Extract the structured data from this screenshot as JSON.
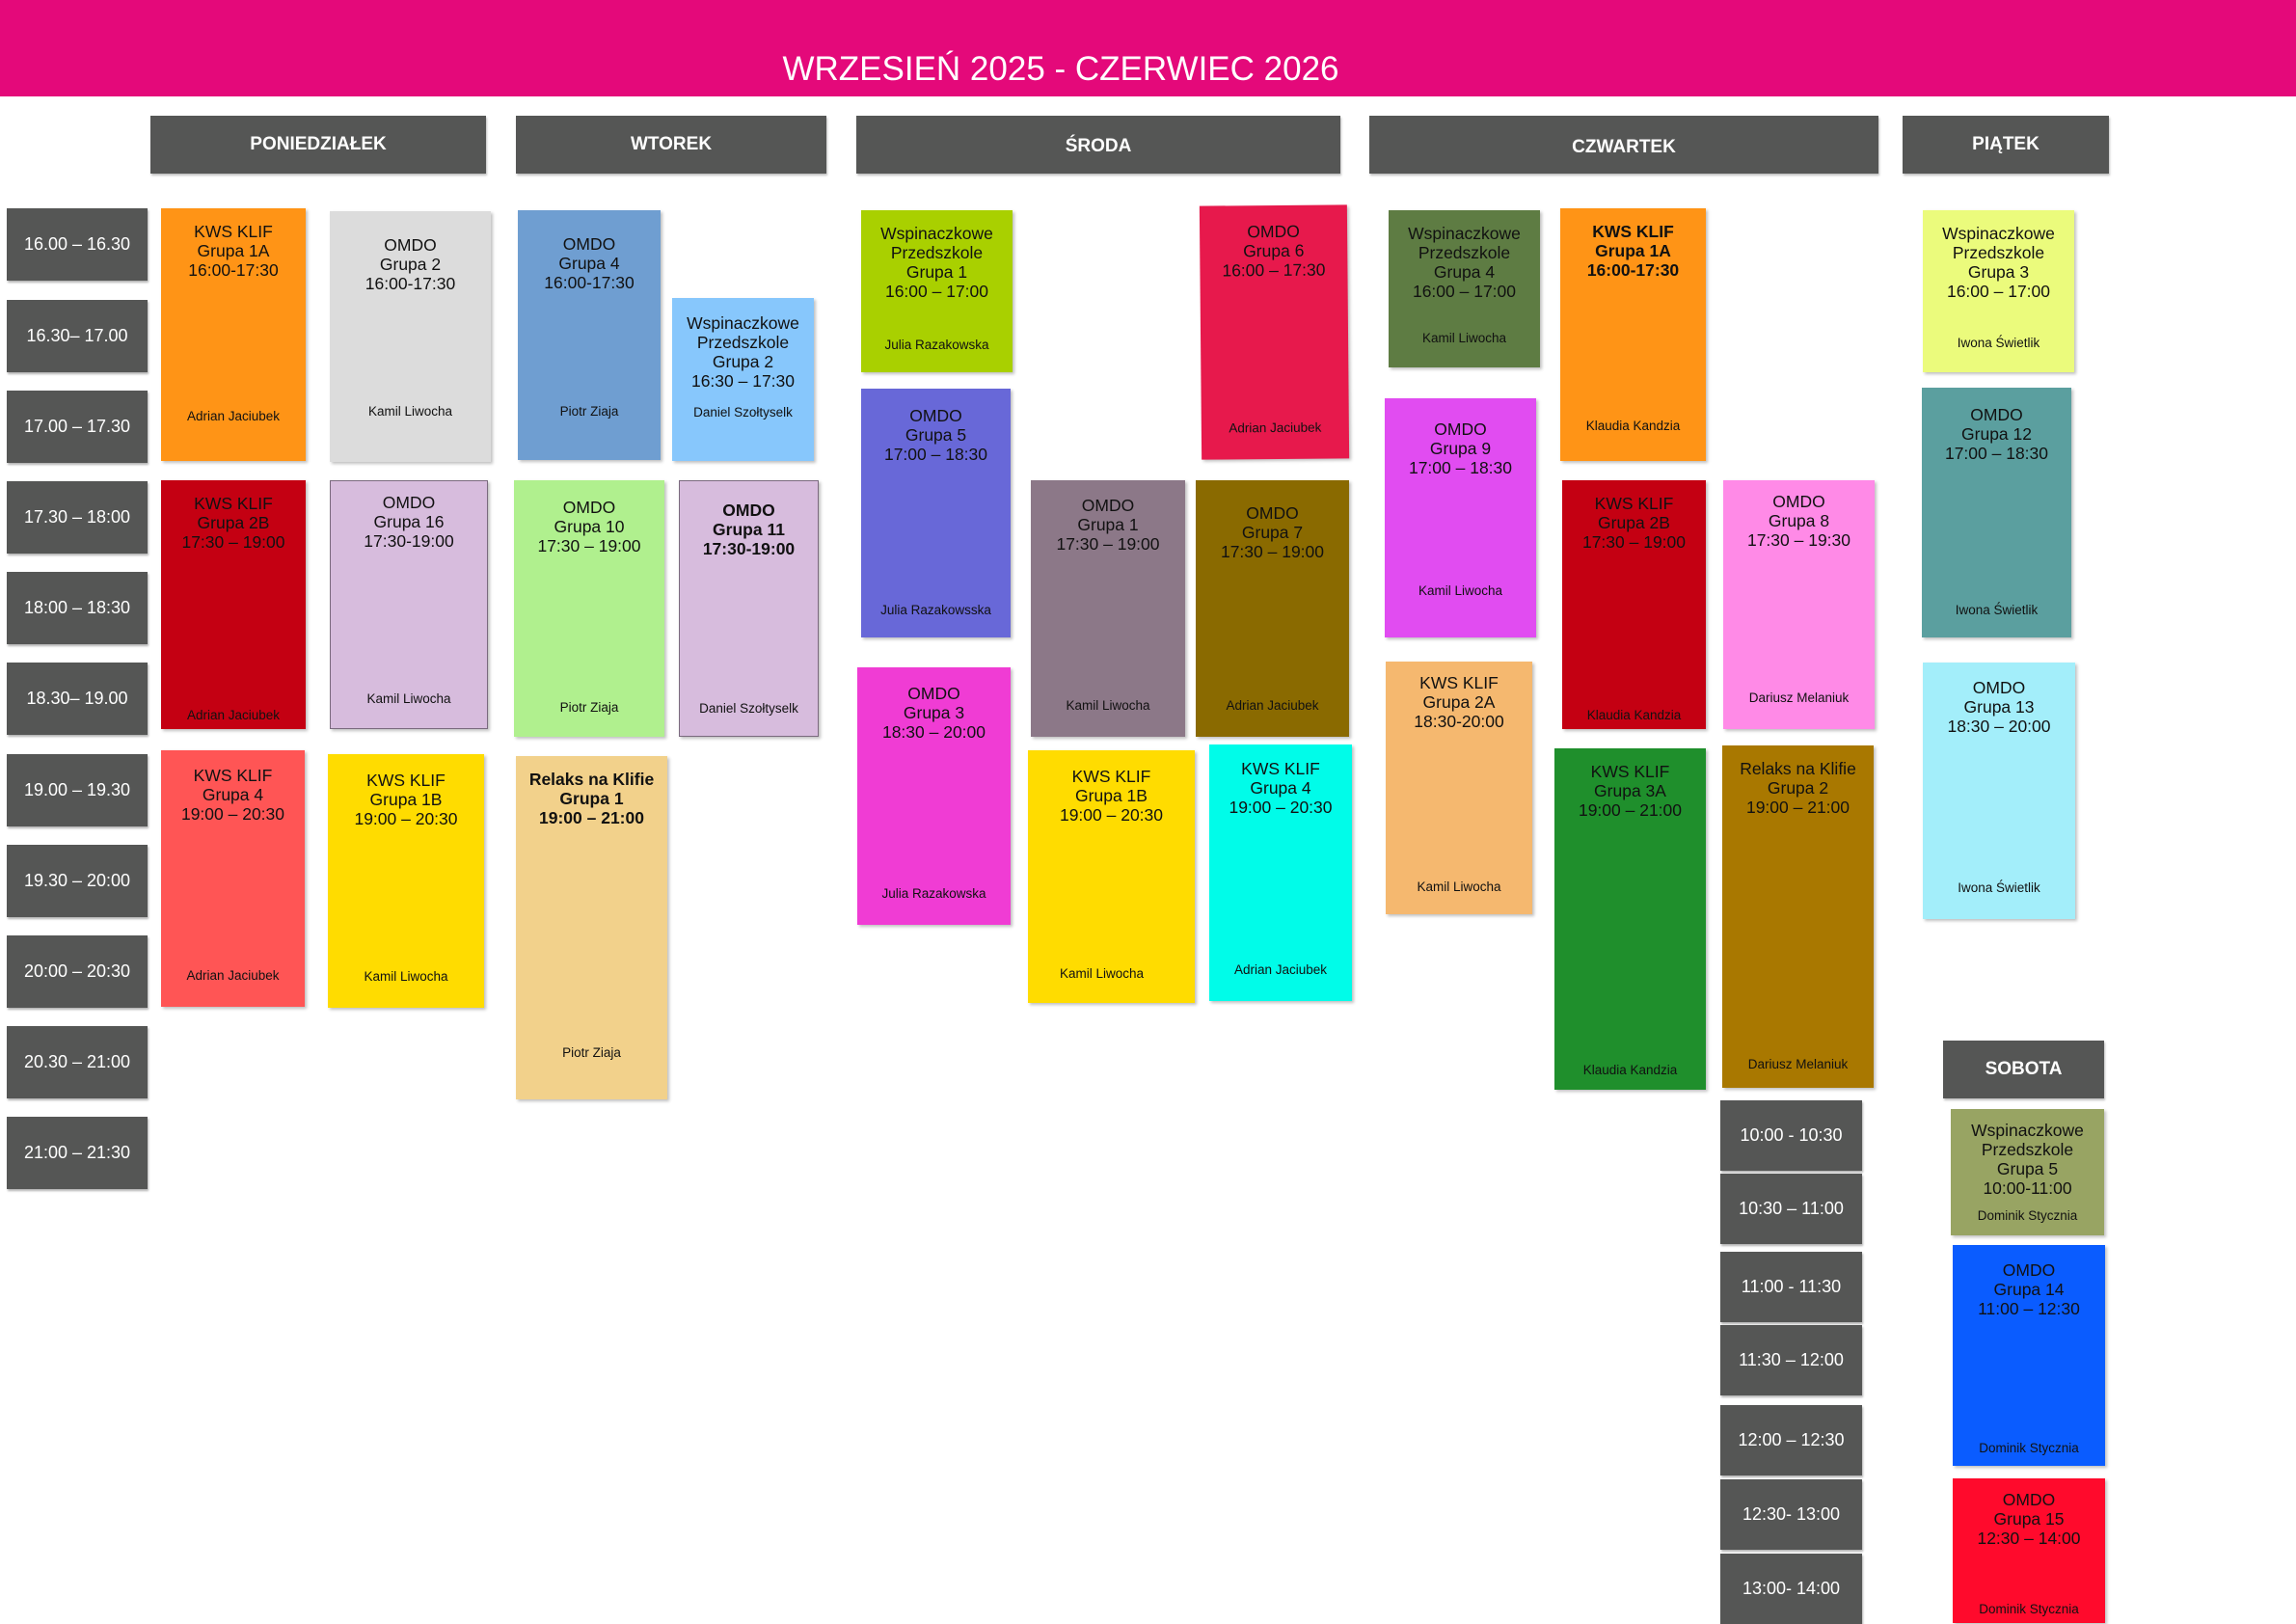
{
  "header": {
    "title": "WRZESIEŃ 2025 - CZERWIEC 2026"
  },
  "days": {
    "mon": "PONIEDZIAŁEK",
    "tue": "WTOREK",
    "wed": "ŚRODA",
    "thu": "CZWARTEK",
    "fri": "PIĄTEK",
    "sat": "SOBOTA"
  },
  "weekday_times": [
    "16.00 – 16.30",
    "16.30– 17.00",
    "17.00 – 17.30",
    "17.30 – 18:00",
    "18:00 – 18:30",
    "18.30– 19.00",
    "19.00 – 19.30",
    "19.30 – 20:00",
    "20:00 – 20:30",
    "20.30 – 21:00",
    "21:00 – 21:30"
  ],
  "saturday_times": [
    "10:00 - 10:30",
    "10:30 – 11:00",
    "11:00 - 11:30",
    "11:30 – 12:00",
    "12:00 – 12:30",
    "12:30- 13:00",
    "13:00- 14:00"
  ],
  "events": {
    "mon_1": {
      "title": "KWS KLIF\nGrupa 1A\n16:00-17:30",
      "instructor": "Adrian Jaciubek",
      "color": "#ff9416"
    },
    "mon_2": {
      "title": "OMDO\nGrupa 2\n16:00-17:30",
      "instructor": "Kamil Liwocha",
      "color": "#dcdcdc"
    },
    "mon_3": {
      "title": "KWS KLIF\nGrupa 2B\n17:30 – 19:00",
      "instructor": "Adrian Jaciubek",
      "color": "#c40012"
    },
    "mon_4": {
      "title": "OMDO\nGrupa 16\n17:30-19:00",
      "instructor": "Kamil Liwocha",
      "color": "#d7bcdd"
    },
    "mon_5": {
      "title": "KWS KLIF\nGrupa 4\n19:00 – 20:30",
      "instructor": "Adrian Jaciubek",
      "color": "#ff5555"
    },
    "mon_6": {
      "title": "KWS KLIF\nGrupa 1B\n19:00 – 20:30",
      "instructor": "Kamil Liwocha",
      "color": "#ffdc00"
    },
    "tue_1": {
      "title": "OMDO\nGrupa 4\n16:00-17:30",
      "instructor": "Piotr Ziaja",
      "color": "#6f9ed1"
    },
    "tue_2": {
      "title": "Wspinaczkowe\nPrzedszkole\nGrupa 2\n16:30 – 17:30",
      "instructor": "Daniel Szołtyselk",
      "color": "#87c7fc"
    },
    "tue_3": {
      "title": "OMDO\nGrupa 10\n17:30 – 19:00",
      "instructor": "Piotr Ziaja",
      "color": "#b0f08e"
    },
    "tue_4": {
      "title": "OMDO\nGrupa 11\n17:30-19:00",
      "instructor": "Daniel Szołtyselk",
      "color": "#d7bcdd"
    },
    "tue_5": {
      "title": "Relaks na Klifie\nGrupa 1\n19:00 – 21:00",
      "instructor": "Piotr Ziaja",
      "color": "#f2d18b"
    },
    "wed_1": {
      "title": "Wspinaczkowe\nPrzedszkole\nGrupa 1\n16:00 – 17:00",
      "instructor": "Julia Razakowska",
      "color": "#a9d000"
    },
    "wed_2": {
      "title": "OMDO\nGrupa 6\n16:00 – 17:30",
      "instructor": "Adrian Jaciubek",
      "color": "#e7194c"
    },
    "wed_3": {
      "title": "OMDO\nGrupa 5\n17:00 – 18:30",
      "instructor": "Julia Razakowsska",
      "color": "#6868d8"
    },
    "wed_4": {
      "title": "OMDO\nGrupa 1\n17:30 – 19:00",
      "instructor": "Kamil Liwocha",
      "color": "#8c7888"
    },
    "wed_5": {
      "title": "OMDO\nGrupa 7\n17:30 – 19:00",
      "instructor": "Adrian Jaciubek",
      "color": "#8a6a00"
    },
    "wed_6": {
      "title": "OMDO\nGrupa 3\n18:30 – 20:00",
      "instructor": "Julia Razakowska",
      "color": "#f03cd4"
    },
    "wed_7": {
      "title": "KWS KLIF\nGrupa 1B\n19:00 – 20:30",
      "instructor": "Kamil Liwocha",
      "color": "#ffdc00"
    },
    "wed_8": {
      "title": "KWS KLIF\nGrupa 4\n19:00 – 20:30",
      "instructor": "Adrian Jaciubek",
      "color": "#00fce9"
    },
    "thu_1": {
      "title": "Wspinaczkowe\nPrzedszkole\nGrupa 4\n16:00 – 17:00",
      "instructor": "Kamil Liwocha",
      "color": "#5e7c43"
    },
    "thu_2": {
      "title": "KWS KLIF\nGrupa 1A\n16:00-17:30",
      "instructor": "Klaudia Kandzia",
      "color": "#ff9416"
    },
    "thu_3": {
      "title": "OMDO\nGrupa 9\n17:00 – 18:30",
      "instructor": "Kamil Liwocha",
      "color": "#e14cf1"
    },
    "thu_4": {
      "title": "KWS KLIF\nGrupa 2B\n17:30 – 19:00",
      "instructor": "Klaudia Kandzia",
      "color": "#c40012"
    },
    "thu_5": {
      "title": "OMDO\nGrupa 8\n17:30 – 19:30",
      "instructor": "Dariusz Melaniuk",
      "color": "#ff8ae7"
    },
    "thu_6": {
      "title": "KWS KLIF\nGrupa 2A\n18:30-20:00",
      "instructor": "Kamil Liwocha",
      "color": "#f5b86f"
    },
    "thu_7": {
      "title": "KWS KLIF\nGrupa 3A\n19:00 – 21:00",
      "instructor": "Klaudia Kandzia",
      "color": "#1f8f2c"
    },
    "thu_8": {
      "title": "Relaks na Klifie\nGrupa 2\n19:00 – 21:00",
      "instructor": "Dariusz Melaniuk",
      "color": "#a97800"
    },
    "fri_1": {
      "title": "Wspinaczkowe\nPrzedszkole\nGrupa 3\n16:00 – 17:00",
      "instructor": "Iwona Świetlik",
      "color": "#ebfb7c"
    },
    "fri_2": {
      "title": "OMDO\nGrupa 12\n17:00 – 18:30",
      "instructor": "Iwona Świetlik",
      "color": "#5b9f9f"
    },
    "fri_3": {
      "title": "OMDO\nGrupa 13\n18:30 – 20:00",
      "instructor": "Iwona Świetlik",
      "color": "#a3eefa"
    },
    "sat_1": {
      "title": "Wspinaczkowe\nPrzedszkole\nGrupa 5\n10:00-11:00",
      "instructor": "Dominik Stycznia",
      "color": "#98a463"
    },
    "sat_2": {
      "title": "OMDO\nGrupa 14\n11:00 – 12:30",
      "instructor": "Dominik Stycznia",
      "color": "#0a5cff"
    },
    "sat_3": {
      "title": "OMDO\nGrupa 15\n12:30 – 14:00",
      "instructor": "Dominik Stycznia",
      "color": "#ff0a2c"
    }
  }
}
